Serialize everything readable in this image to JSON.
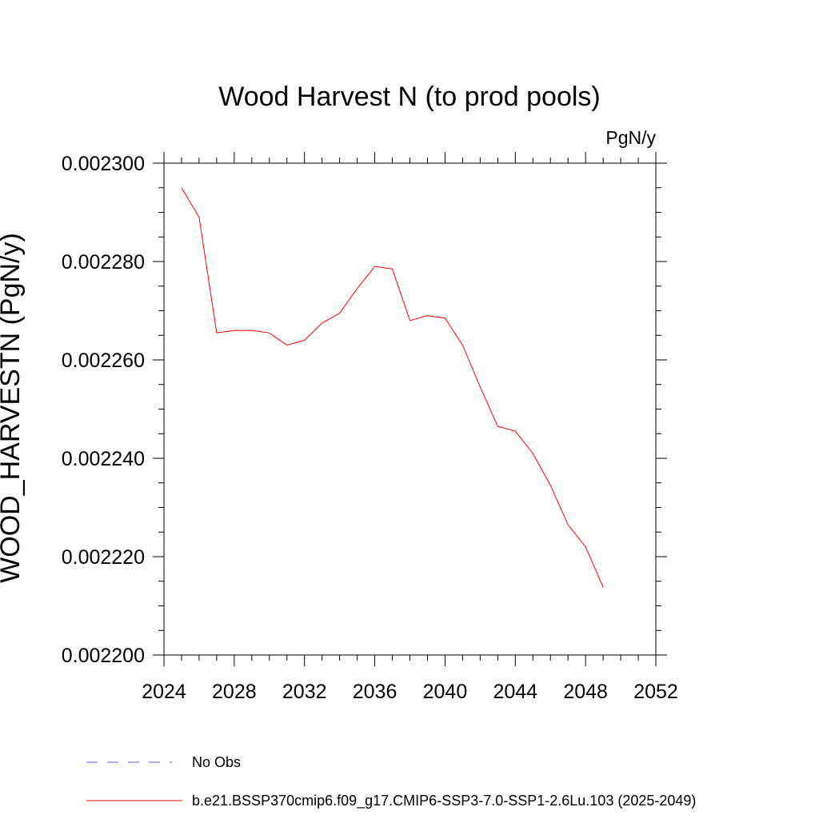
{
  "chart_data": {
    "type": "line",
    "title": "Wood Harvest N (to prod pools)",
    "units_label": "PgN/y",
    "ylabel": "WOOD_HARVESTN  (PgN/y)",
    "xlabel": "",
    "xlim": [
      2024,
      2052
    ],
    "ylim": [
      0.0022,
      0.0023
    ],
    "x_ticks": [
      "2024",
      "2028",
      "2032",
      "2036",
      "2040",
      "2044",
      "2048",
      "2052"
    ],
    "y_ticks": [
      "0.002200",
      "0.002220",
      "0.002240",
      "0.002260",
      "0.002280",
      "0.002300"
    ],
    "grid": false,
    "series": [
      {
        "name": "b.e21.BSSP370cmip6.f09_g17.CMIP6-SSP3-7.0-SSP1-2.6Lu.103 (2025-2049)",
        "color": "#ff0000",
        "style": "solid",
        "x": [
          2025,
          2026,
          2027,
          2028,
          2029,
          2030,
          2031,
          2032,
          2033,
          2034,
          2035,
          2036,
          2037,
          2038,
          2039,
          2040,
          2041,
          2042,
          2043,
          2044,
          2045,
          2046,
          2047,
          2048,
          2049
        ],
        "y": [
          0.002295,
          0.002289,
          0.0022655,
          0.002266,
          0.002266,
          0.0022655,
          0.002263,
          0.002264,
          0.0022675,
          0.0022695,
          0.0022745,
          0.002279,
          0.0022785,
          0.002268,
          0.002269,
          0.0022685,
          0.002263,
          0.0022545,
          0.0022465,
          0.0022455,
          0.002241,
          0.0022345,
          0.0022265,
          0.002222,
          0.0022138
        ]
      }
    ],
    "legend": [
      {
        "label": "No Obs",
        "color": "#6a5acd",
        "style": "dashed"
      },
      {
        "label": "b.e21.BSSP370cmip6.f09_g17.CMIP6-SSP3-7.0-SSP1-2.6Lu.103 (2025-2049)",
        "color": "#ff0000",
        "style": "solid"
      }
    ],
    "legend_position": "bottom-left"
  }
}
